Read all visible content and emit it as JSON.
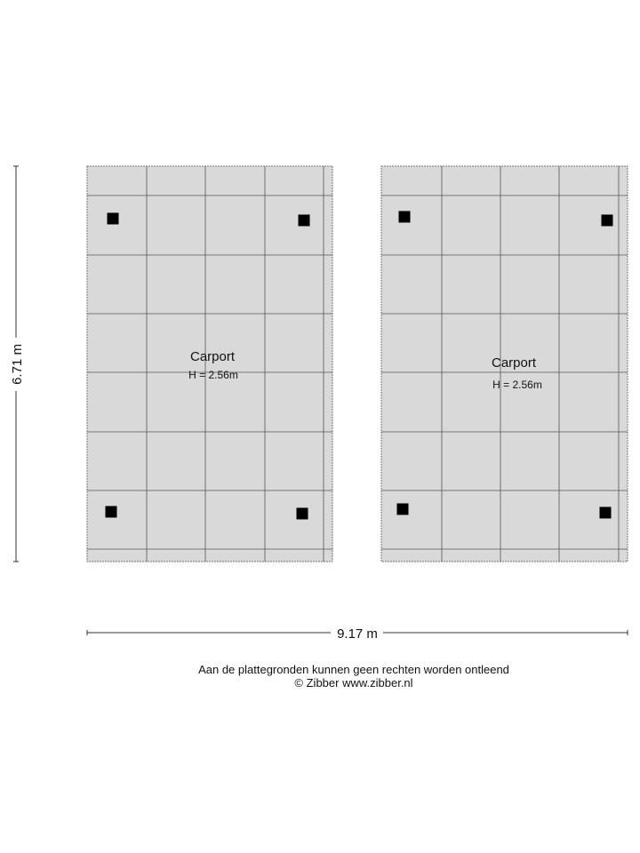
{
  "rooms": [
    {
      "name": "Carport",
      "height": "H = 2.56m"
    },
    {
      "name": "Carport",
      "height": "H = 2.56m"
    }
  ],
  "dimensions": {
    "vertical": "6.71 m",
    "horizontal": "9.17 m"
  },
  "footer": {
    "disclaimer": "Aan de plattegronden kunnen geen rechten worden ontleend",
    "copyright": "© Zibber www.zibber.nl"
  },
  "colors": {
    "floor": "#d9d9d9",
    "grid": "#555555",
    "post": "#000000"
  }
}
